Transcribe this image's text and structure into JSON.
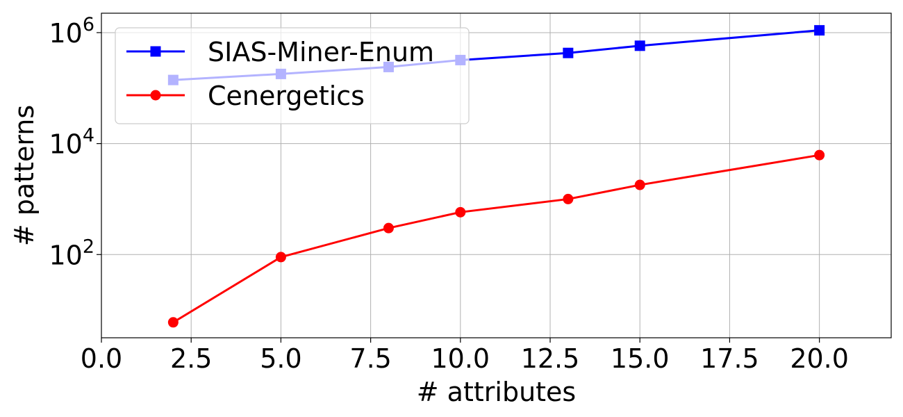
{
  "chart_data": {
    "type": "line",
    "xlabel": "# attributes",
    "ylabel": "# patterns",
    "xlim": [
      0,
      22
    ],
    "ylim_log10": [
      0.5,
      6.35
    ],
    "yscale": "log",
    "grid": true,
    "legend_position": "upper-left",
    "x_ticks": [
      0.0,
      2.5,
      5.0,
      7.5,
      10.0,
      12.5,
      15.0,
      17.5,
      20.0
    ],
    "x_tick_labels": [
      "0.0",
      "2.5",
      "5.0",
      "7.5",
      "10.0",
      "12.5",
      "15.0",
      "17.5",
      "20.0"
    ],
    "y_ticks": [
      {
        "value": 100,
        "base": "10",
        "exp": "2"
      },
      {
        "value": 10000,
        "base": "10",
        "exp": "4"
      },
      {
        "value": 1000000,
        "base": "10",
        "exp": "6"
      }
    ],
    "series": [
      {
        "name": "SIAS-Miner-Enum",
        "color": "#0000ff",
        "marker": "square",
        "x": [
          2,
          5,
          8,
          10,
          13,
          15,
          20
        ],
        "y": [
          140000,
          180000,
          240000,
          320000,
          430000,
          580000,
          1100000
        ]
      },
      {
        "name": "Cenergetics",
        "color": "#ff0000",
        "marker": "circle",
        "x": [
          2,
          5,
          8,
          10,
          13,
          15,
          20
        ],
        "y": [
          6,
          90,
          300,
          580,
          1000,
          1800,
          6200
        ]
      }
    ]
  }
}
